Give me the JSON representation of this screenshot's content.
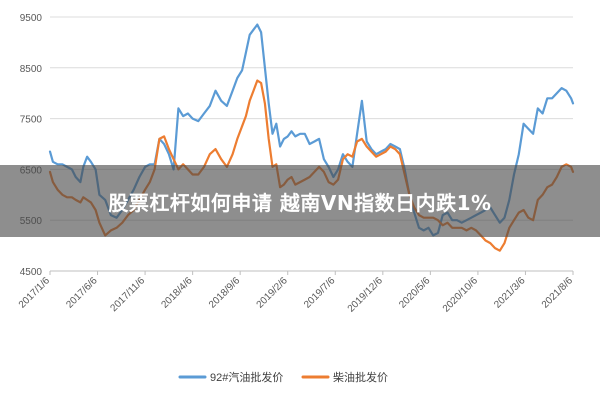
{
  "banner": {
    "headline": "股票杠杆如何申请 越南VN指数日内跌1%"
  },
  "chart_data": {
    "type": "line",
    "title": "",
    "xlabel": "",
    "ylabel": "",
    "ylim": [
      4500,
      9500
    ],
    "yticks": [
      4500,
      5500,
      6500,
      7500,
      8500,
      9500
    ],
    "grid": true,
    "legend_position": "bottom",
    "x_tick_labels": [
      "2017/1/6",
      "2017/6/6",
      "2017/11/6",
      "2018/4/6",
      "2018/9/6",
      "2019/2/6",
      "2019/7/6",
      "2019/12/6",
      "2020/5/6",
      "2020/10/6",
      "2021/3/6",
      "2021/8/6"
    ],
    "x_range": [
      0,
      55
    ],
    "colors": {
      "series_a": "#5b9bd5",
      "series_b": "#ed7d31",
      "banner_bg": "#4a4a4a"
    },
    "series": [
      {
        "name": "92#汽油批发价",
        "color": "#5b9bd5",
        "x": [
          0,
          0.3,
          0.8,
          1.3,
          1.8,
          2.3,
          2.7,
          3.2,
          3.5,
          3.9,
          4.3,
          4.8,
          5.2,
          5.8,
          6.4,
          7,
          7.6,
          8.2,
          8.8,
          9.4,
          10,
          10.5,
          11,
          11.5,
          12,
          12.5,
          13,
          13.5,
          14,
          14.5,
          15,
          15.6,
          16.2,
          16.8,
          17.4,
          18,
          18.6,
          19.2,
          19.7,
          20.2,
          20.6,
          21,
          21.4,
          21.8,
          22.2,
          22.6,
          23,
          23.4,
          23.8,
          24.2,
          24.6,
          25,
          25.4,
          25.8,
          26.3,
          26.8,
          27.3,
          27.8,
          28.3,
          28.8,
          29.3,
          29.8,
          30.3,
          30.8,
          31.3,
          31.8,
          32.3,
          32.8,
          33.3,
          33.8,
          34.3,
          34.8,
          35.3,
          35.8,
          36.3,
          36.8,
          37.3,
          37.8,
          38.3,
          38.8,
          39.3,
          39.8,
          40.3,
          40.8,
          41.3,
          41.8,
          42.3,
          42.8,
          43.3,
          43.8,
          44.3,
          44.8,
          45.3,
          45.8,
          46.3,
          46.8,
          47.3,
          47.8,
          48.3,
          48.8,
          49.3,
          49.8,
          50.3,
          50.8,
          51.3,
          51.8,
          52.3,
          52.8,
          53.3,
          53.8,
          54.3,
          54.8,
          55
        ],
        "values": [
          6850,
          6650,
          6600,
          6600,
          6550,
          6500,
          6350,
          6250,
          6550,
          6750,
          6650,
          6500,
          6000,
          5900,
          5600,
          5550,
          5700,
          5900,
          6100,
          6350,
          6550,
          6600,
          6600,
          7100,
          7000,
          6800,
          6500,
          7700,
          7550,
          7600,
          7500,
          7450,
          7600,
          7750,
          8050,
          7850,
          7750,
          8050,
          8300,
          8450,
          8800,
          9150,
          9250,
          9350,
          9200,
          8500,
          7800,
          7200,
          7400,
          6950,
          7100,
          7150,
          7250,
          7150,
          7200,
          7200,
          7000,
          7050,
          7100,
          6700,
          6550,
          6350,
          6500,
          6800,
          6650,
          6550,
          7200,
          7850,
          7050,
          6900,
          6800,
          6850,
          6900,
          7000,
          6950,
          6900,
          6500,
          6000,
          5650,
          5350,
          5300,
          5350,
          5200,
          5250,
          5600,
          5650,
          5500,
          5500,
          5450,
          5500,
          5550,
          5600,
          5650,
          5700,
          5750,
          5600,
          5450,
          5550,
          5900,
          6400,
          6800,
          7400,
          7300,
          7200,
          7700,
          7600,
          7900,
          7900,
          8000,
          8100,
          8050,
          7900,
          7800
        ],
        "value_at_6": 5600
      },
      {
        "name": "柴油批发价",
        "color": "#ed7d31",
        "x": [
          0,
          0.3,
          0.8,
          1.3,
          1.8,
          2.3,
          2.7,
          3.2,
          3.5,
          3.9,
          4.3,
          4.8,
          5.2,
          5.8,
          6.4,
          7,
          7.6,
          8.2,
          8.8,
          9.4,
          10,
          10.5,
          11,
          11.5,
          12,
          12.5,
          13,
          13.5,
          14,
          14.5,
          15,
          15.6,
          16.2,
          16.8,
          17.4,
          18,
          18.6,
          19.2,
          19.7,
          20.2,
          20.6,
          21,
          21.4,
          21.8,
          22.2,
          22.6,
          23,
          23.4,
          23.8,
          24.2,
          24.6,
          25,
          25.4,
          25.8,
          26.3,
          26.8,
          27.3,
          27.8,
          28.3,
          28.8,
          29.3,
          29.8,
          30.3,
          30.8,
          31.3,
          31.8,
          32.3,
          32.8,
          33.3,
          33.8,
          34.3,
          34.8,
          35.3,
          35.8,
          36.3,
          36.8,
          37.3,
          37.8,
          38.3,
          38.8,
          39.3,
          39.8,
          40.3,
          40.8,
          41.3,
          41.8,
          42.3,
          42.8,
          43.3,
          43.8,
          44.3,
          44.8,
          45.3,
          45.8,
          46.3,
          46.8,
          47.3,
          47.8,
          48.3,
          48.8,
          49.3,
          49.8,
          50.3,
          50.8,
          51.3,
          51.8,
          52.3,
          52.8,
          53.3,
          53.8,
          54.3,
          54.8,
          55
        ],
        "values": [
          6450,
          6250,
          6100,
          6000,
          5950,
          5950,
          5900,
          5850,
          5950,
          5900,
          5850,
          5700,
          5450,
          5200,
          5300,
          5350,
          5450,
          5600,
          5700,
          5900,
          6100,
          6250,
          6500,
          7100,
          7150,
          6900,
          6700,
          6500,
          6600,
          6500,
          6400,
          6400,
          6550,
          6800,
          6900,
          6700,
          6550,
          6800,
          7100,
          7350,
          7550,
          7850,
          8050,
          8250,
          8200,
          7800,
          7100,
          6550,
          6600,
          6150,
          6200,
          6300,
          6350,
          6200,
          6250,
          6300,
          6350,
          6450,
          6550,
          6450,
          6250,
          6200,
          6300,
          6700,
          6800,
          6750,
          7050,
          7100,
          6950,
          6850,
          6750,
          6800,
          6850,
          6950,
          6900,
          6800,
          6400,
          6000,
          5750,
          5600,
          5550,
          5550,
          5550,
          5500,
          5400,
          5450,
          5350,
          5350,
          5350,
          5300,
          5350,
          5300,
          5200,
          5100,
          5050,
          4950,
          4900,
          5050,
          5350,
          5500,
          5650,
          5700,
          5550,
          5500,
          5900,
          6000,
          6150,
          6200,
          6350,
          6550,
          6600,
          6550,
          6450
        ],
        "value_at_6": 5300
      }
    ]
  }
}
